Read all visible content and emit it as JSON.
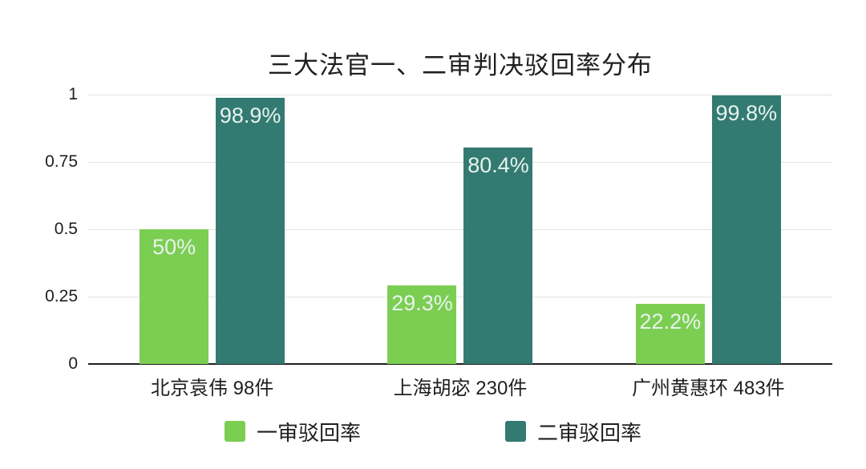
{
  "chart_data": {
    "type": "bar",
    "title": "三大法官一、二审判决驳回率分布",
    "categories": [
      "北京袁伟 98件",
      "上海胡宓 230件",
      "广州黄惠环 483件"
    ],
    "series": [
      {
        "name": "一审驳回率",
        "color": "#7CCE53",
        "values": [
          0.5,
          0.293,
          0.222
        ],
        "labels": [
          "50%",
          "29.3%",
          "22.2%"
        ]
      },
      {
        "name": "二审驳回率",
        "color": "#337A72",
        "values": [
          0.989,
          0.804,
          0.998
        ],
        "labels": [
          "98.9%",
          "80.4%",
          "99.8%"
        ]
      }
    ],
    "xlabel": "",
    "ylabel": "",
    "ylim": [
      0,
      1
    ],
    "yticks": [
      "1",
      "0.75",
      "0.5",
      "0.25",
      "0"
    ],
    "grid": true,
    "legend_position": "bottom"
  },
  "colors": {
    "series1": "#7CCE53",
    "series2": "#337A72",
    "bar_label": "#E7F3EC",
    "text": "#1F1F1F",
    "gridline": "#E3E3E3",
    "axis_line": "#1F1F1F",
    "background": "#FFFFFF"
  }
}
